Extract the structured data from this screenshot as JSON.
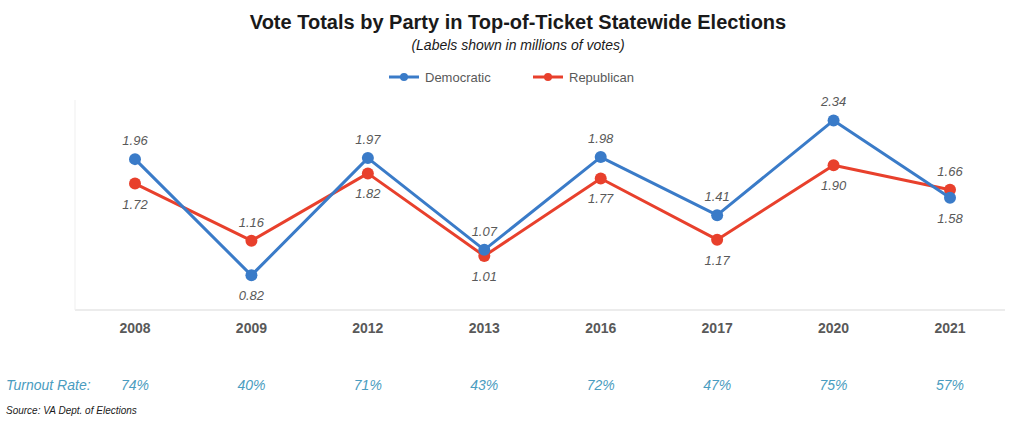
{
  "chart_data": {
    "type": "line",
    "title": "Vote Totals by Party in Top-of-Ticket Statewide Elections",
    "subtitle": "(Labels shown in millions of votes)",
    "categories": [
      "2008",
      "2009",
      "2012",
      "2013",
      "2016",
      "2017",
      "2020",
      "2021"
    ],
    "series": [
      {
        "name": "Democratic",
        "color": "#3a7bc8",
        "marker": "circle",
        "line_style": "solid",
        "values": [
          1.96,
          0.82,
          1.97,
          1.07,
          1.98,
          1.41,
          2.34,
          1.58
        ],
        "value_labels": [
          "1.96",
          "0.82",
          "1.97",
          "1.07",
          "1.98",
          "1.41",
          "2.34",
          "1.58"
        ]
      },
      {
        "name": "Republican",
        "color": "#e8402c",
        "marker": "circle",
        "line_style": "solid",
        "values": [
          1.72,
          1.16,
          1.82,
          1.01,
          1.77,
          1.17,
          1.9,
          1.66
        ],
        "value_labels": [
          "1.72",
          "1.16",
          "1.82",
          "1.01",
          "1.77",
          "1.17",
          "1.90",
          "1.66"
        ]
      }
    ],
    "ylim": [
      0.48,
      2.54
    ],
    "yticks": [],
    "tick_labels": "x",
    "grid": false,
    "legend": "top",
    "data_labels": true,
    "turnout_label": "Turnout Rate:",
    "turnout_rate": [
      "74%",
      "40%",
      "71%",
      "43%",
      "72%",
      "47%",
      "75%",
      "57%"
    ],
    "source": "Source: VA Dept. of Elections"
  }
}
